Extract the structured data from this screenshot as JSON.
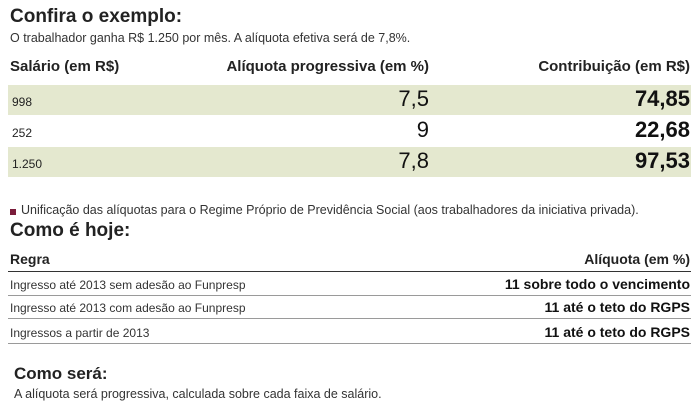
{
  "example": {
    "title": "Confira o exemplo:",
    "subtitle": "O trabalhador ganha R$ 1.250 por mês. A alíquota efetiva será de 7,8%.",
    "columns": [
      "Salário (em R$)",
      "Alíquota progressiva (em %)",
      "Contribuição (em R$)"
    ],
    "rows": [
      {
        "salario": "998",
        "aliquota": "7,5",
        "contribuicao": "74,85"
      },
      {
        "salario": "252",
        "aliquota": "9",
        "contribuicao": "22,68"
      },
      {
        "salario": "1.250",
        "aliquota": "7,8",
        "contribuicao": "97,53"
      }
    ]
  },
  "unification": {
    "note": "Unificação das alíquotas para o Regime Próprio de Previdência Social (aos trabalhadores da iniciativa privada).",
    "bullet_color": "#7a1c3b"
  },
  "today": {
    "title": "Como é hoje:",
    "columns": [
      "Regra",
      "Alíquota (em %)"
    ],
    "rows": [
      {
        "regra": "Ingresso até 2013 sem adesão ao Funpresp",
        "aliquota": "11 sobre todo o vencimento"
      },
      {
        "regra": "Ingresso até 2013 com adesão ao Funpresp",
        "aliquota": "11 até o teto do RGPS"
      },
      {
        "regra": "Ingressos a partir de 2013",
        "aliquota": "11 até o teto do RGPS"
      }
    ]
  },
  "future": {
    "title": "Como será:",
    "text": "A alíquota será progressiva, calculada sobre cada faixa de salário."
  },
  "colors": {
    "band": "#e4e8cf",
    "text": "#1a1a1a"
  }
}
